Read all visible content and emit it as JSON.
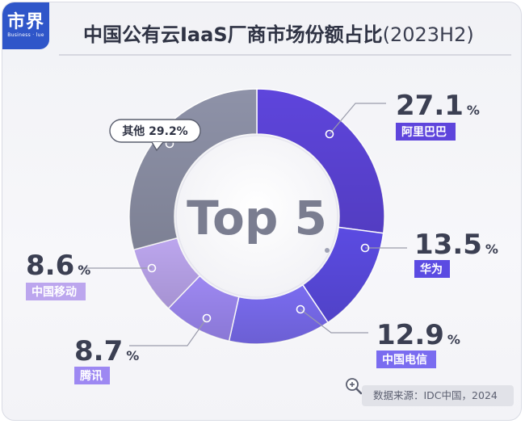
{
  "logo": {
    "main": "市界",
    "sub": "Business  ·  lue"
  },
  "title": {
    "main": "中国公有云IaaS厂商市场份额占比",
    "suffix": "(2023H2)"
  },
  "center_label": "Top 5",
  "source": "数据来源：IDC中国，2024",
  "icons": {
    "source_icon": "magnifier-plus-icon"
  },
  "chart_data": {
    "type": "pie",
    "title": "中国公有云IaaS厂商市场份额占比(2023H2)",
    "donut": true,
    "unit": "%",
    "slices": [
      {
        "label": "阿里巴巴",
        "value": 27.1,
        "color": "#5e45dc"
      },
      {
        "label": "华为",
        "value": 13.5,
        "color": "#5b4be2"
      },
      {
        "label": "中国电信",
        "value": 12.9,
        "color": "#7a6cf0"
      },
      {
        "label": "腾讯",
        "value": 8.7,
        "color": "#9d88f2"
      },
      {
        "label": "中国移动",
        "value": 8.6,
        "color": "#bca6ee"
      },
      {
        "label": "其他",
        "value": 29.2,
        "color": "#8e92a8"
      }
    ],
    "value_labels": [
      "27.1",
      "13.5",
      "12.9",
      "8.7",
      "8.6",
      "29.2"
    ]
  }
}
